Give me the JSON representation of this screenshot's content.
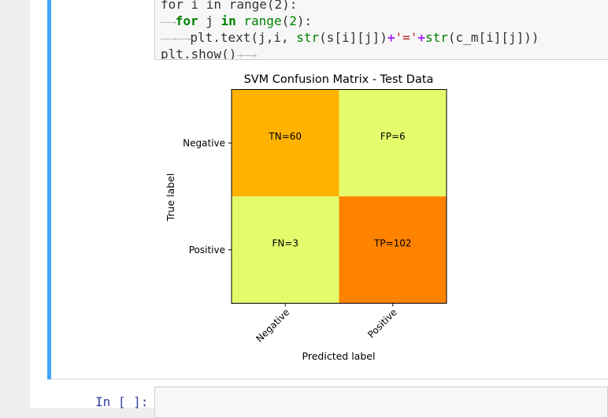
{
  "cell": {
    "code_lines": [
      [
        {
          "t": "for i in range(2):",
          "c": "plain"
        }
      ],
      [
        {
          "t": "——→",
          "c": "tab"
        },
        {
          "t": "for",
          "c": "kw"
        },
        {
          "t": " j ",
          "c": "plain"
        },
        {
          "t": "in",
          "c": "kw"
        },
        {
          "t": " ",
          "c": "plain"
        },
        {
          "t": "range",
          "c": "bi"
        },
        {
          "t": "(",
          "c": "plain"
        },
        {
          "t": "2",
          "c": "num"
        },
        {
          "t": "):",
          "c": "plain"
        }
      ],
      [
        {
          "t": "——→——→",
          "c": "tab"
        },
        {
          "t": "plt.text(j,i, ",
          "c": "plain"
        },
        {
          "t": "str",
          "c": "bi"
        },
        {
          "t": "(s[i][j])",
          "c": "plain"
        },
        {
          "t": "+",
          "c": "op"
        },
        {
          "t": "'='",
          "c": "str"
        },
        {
          "t": "+",
          "c": "op"
        },
        {
          "t": "str",
          "c": "bi"
        },
        {
          "t": "(c_m[i][j]))",
          "c": "plain"
        }
      ],
      [
        {
          "t": "plt.show()",
          "c": "plain"
        },
        {
          "t": "→——→",
          "c": "tab"
        }
      ]
    ]
  },
  "chart_data": {
    "type": "heatmap",
    "title": "SVM Confusion Matrix - Test Data",
    "xlabel": "Predicted label",
    "ylabel": "True label",
    "x_tick_labels": [
      "Negative",
      "Positive"
    ],
    "y_tick_labels": [
      "Negative",
      "Positive"
    ],
    "cells": [
      {
        "row": 0,
        "col": 0,
        "label": "TN=60",
        "value": 60,
        "color": "#ffb300"
      },
      {
        "row": 0,
        "col": 1,
        "label": "FP=6",
        "value": 6,
        "color": "#e4fc6c"
      },
      {
        "row": 1,
        "col": 0,
        "label": "FN=3",
        "value": 3,
        "color": "#e4fc6c"
      },
      {
        "row": 1,
        "col": 1,
        "label": "TP=102",
        "value": 102,
        "color": "#ff8200"
      }
    ],
    "colormap": "Wistia"
  },
  "next_cell": {
    "prompt": "In [ ]:"
  }
}
